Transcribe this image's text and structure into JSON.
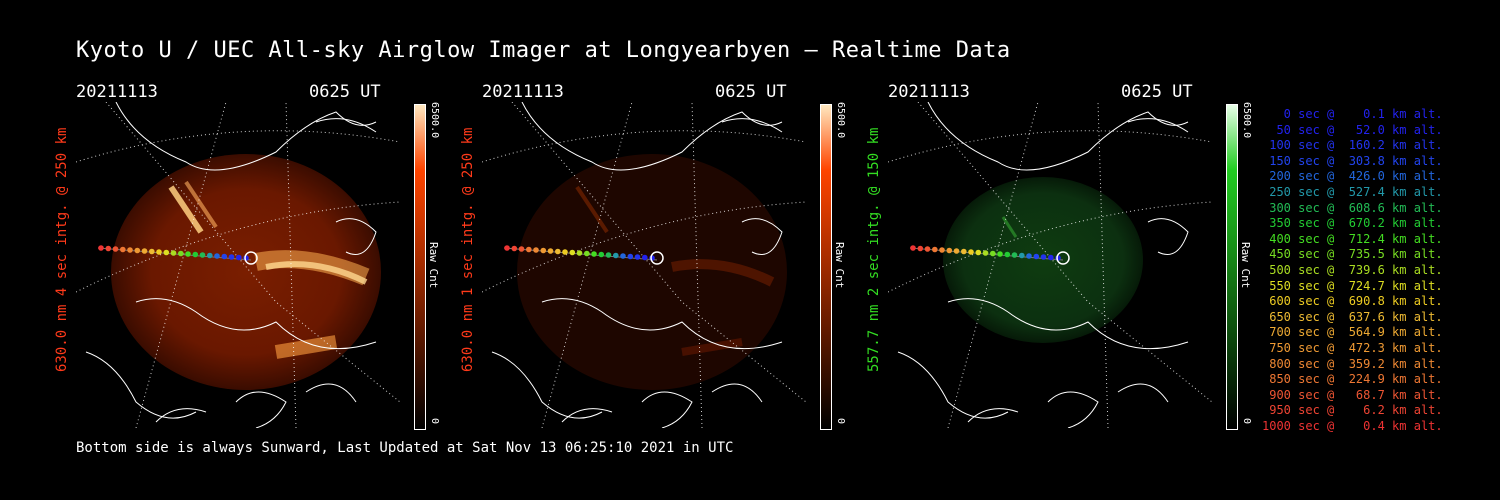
{
  "title": "Kyoto U / UEC All-sky Airglow Imager at Longyearbyen — Realtime Data",
  "footer": "Bottom side is always Sunward, Last Updated at Sat Nov 13 06:25:10 2021 in UTC",
  "panels": [
    {
      "date": "20211113",
      "time": "0625 UT",
      "label": "630.0 nm 4 sec intg. @ 250 km",
      "label_color": "#ff3a1a",
      "cbar_max": "6500.0",
      "cbar_unit": "Raw Cnt",
      "cbar_min": "0",
      "cbar_color": "#ff4400"
    },
    {
      "date": "20211113",
      "time": "0625 UT",
      "label": "630.0 nm 1 sec intg. @ 250 km",
      "label_color": "#ff3a1a",
      "cbar_max": "6500.0",
      "cbar_unit": "Raw Cnt",
      "cbar_min": "0",
      "cbar_color": "#ff4400"
    },
    {
      "date": "20211113",
      "time": "0625 UT",
      "label": "557.7 nm 2 sec intg. @ 150 km",
      "label_color": "#33dd22",
      "cbar_max": "6500.0",
      "cbar_unit": "Raw Cnt",
      "cbar_min": "0",
      "cbar_color": "#22cc22"
    }
  ],
  "legend": [
    {
      "text": "   0 sec @    0.1 km alt.",
      "color": "#2222ee"
    },
    {
      "text": "  50 sec @   52.0 km alt.",
      "color": "#2222ee"
    },
    {
      "text": " 100 sec @  160.2 km alt.",
      "color": "#2233ee"
    },
    {
      "text": " 150 sec @  303.8 km alt.",
      "color": "#2244ee"
    },
    {
      "text": " 200 sec @  426.0 km alt.",
      "color": "#2266dd"
    },
    {
      "text": " 250 sec @  527.4 km alt.",
      "color": "#2299aa"
    },
    {
      "text": " 300 sec @  608.6 km alt.",
      "color": "#22bb55"
    },
    {
      "text": " 350 sec @  670.2 km alt.",
      "color": "#22cc33"
    },
    {
      "text": " 400 sec @  712.4 km alt.",
      "color": "#44dd22"
    },
    {
      "text": " 450 sec @  735.5 km alt.",
      "color": "#77dd22"
    },
    {
      "text": " 500 sec @  739.6 km alt.",
      "color": "#aadd22"
    },
    {
      "text": " 550 sec @  724.7 km alt.",
      "color": "#dddd22"
    },
    {
      "text": " 600 sec @  690.8 km alt.",
      "color": "#eecc22"
    },
    {
      "text": " 650 sec @  637.6 km alt.",
      "color": "#eebb33"
    },
    {
      "text": " 700 sec @  564.9 km alt.",
      "color": "#eeaa33"
    },
    {
      "text": " 750 sec @  472.3 km alt.",
      "color": "#ee9933"
    },
    {
      "text": " 800 sec @  359.2 km alt.",
      "color": "#ee8833"
    },
    {
      "text": " 850 sec @  224.9 km alt.",
      "color": "#ee7733"
    },
    {
      "text": " 900 sec @   68.7 km alt.",
      "color": "#ee5533"
    },
    {
      "text": " 950 sec @    6.2 km alt.",
      "color": "#ee4433"
    },
    {
      "text": "1000 sec @    0.4 km alt.",
      "color": "#ee3333"
    }
  ],
  "track_colors": [
    "#2222ee",
    "#2222ee",
    "#2233ee",
    "#2244ee",
    "#2266dd",
    "#2299aa",
    "#22bb55",
    "#22cc33",
    "#44dd22",
    "#77dd22",
    "#aadd22",
    "#dddd22",
    "#eecc22",
    "#eebb33",
    "#eeaa33",
    "#ee9933",
    "#ee8833",
    "#ee7733",
    "#ee5533",
    "#ee4433",
    "#ee3333"
  ]
}
